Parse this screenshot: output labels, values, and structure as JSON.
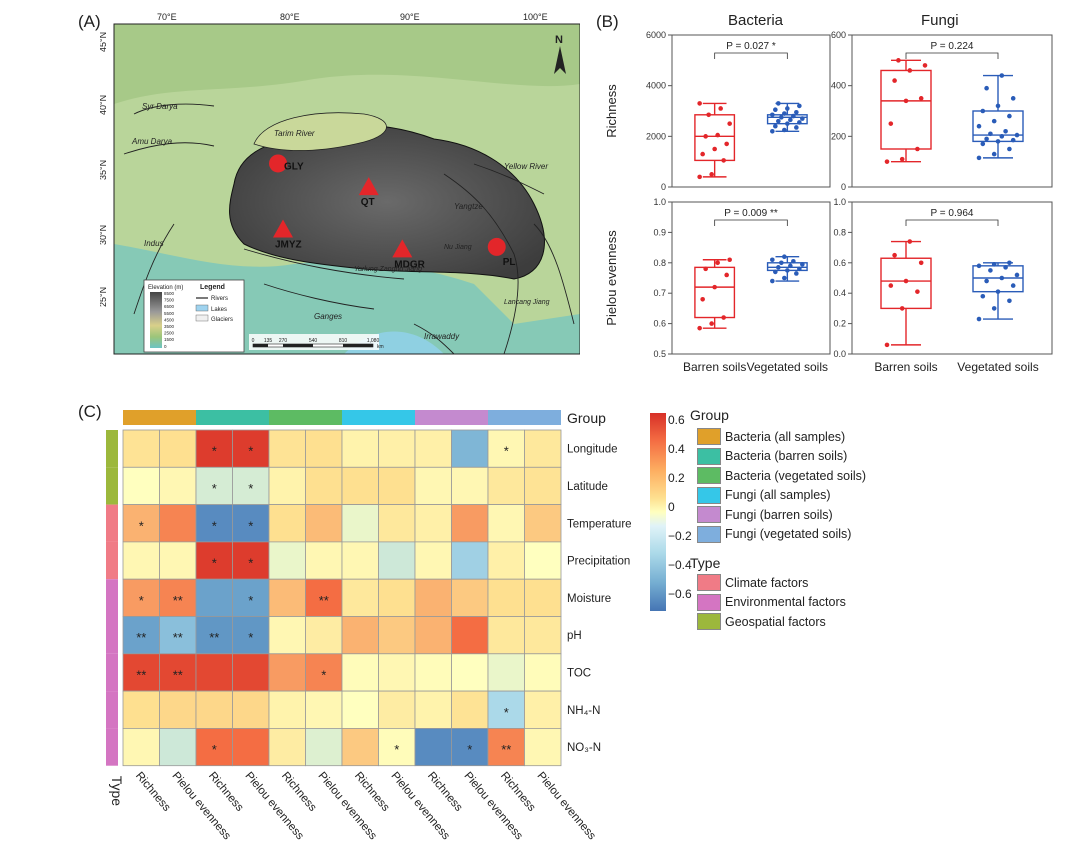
{
  "panel_labels": {
    "a": "(A)",
    "b": "(B)",
    "c": "(C)"
  },
  "map": {
    "lon_labels": [
      "70°E",
      "80°E",
      "90°E",
      "100°E"
    ],
    "lat_labels": [
      "45°N",
      "40°N",
      "35°N",
      "30°N",
      "25°N"
    ],
    "north": "N",
    "sites": [
      {
        "label": "GLY",
        "marker": "circle",
        "lon": 79.8,
        "lat": 35.3
      },
      {
        "label": "QT",
        "marker": "triangle",
        "lon": 87.1,
        "lat": 33.4
      },
      {
        "label": "JMYZ",
        "marker": "triangle",
        "lon": 80.2,
        "lat": 30.0
      },
      {
        "label": "MDGR",
        "marker": "triangle",
        "lon": 89.8,
        "lat": 28.4
      },
      {
        "label": "PL",
        "marker": "circle",
        "lon": 97.4,
        "lat": 28.6
      }
    ],
    "rivers": [
      "Syr Darya",
      "Amu Darya",
      "Tarim River",
      "Yellow River",
      "Yangtze",
      "Indus",
      "Yarlung Zangbo Jiang",
      "Nu Jiang",
      "Lancang Jiang",
      "Ganges",
      "Irrawaddy"
    ],
    "legend": {
      "title": "Legend",
      "elev_title": "Elevation (m)",
      "elev_ticks": [
        "8500",
        "7500",
        "6500",
        "5500",
        "4500",
        "3500",
        "2500",
        "1500",
        "0"
      ],
      "items": [
        "Rivers",
        "Lakes",
        "Glaciers"
      ]
    },
    "scale": {
      "ticks": [
        "0",
        "135",
        "270",
        "540",
        "810",
        "1,080"
      ],
      "unit": "km"
    }
  },
  "chart_data": [
    {
      "type": "box",
      "title": "Bacteria",
      "ylabel": "Richness",
      "ylim": [
        0,
        6000
      ],
      "yticks": [
        0,
        2000,
        4000,
        6000
      ],
      "categories": [
        "Barren soils",
        "Vegetated soils"
      ],
      "annotation": "P = 0.027 *",
      "boxes": [
        {
          "min": 400,
          "q1": 1050,
          "median": 2000,
          "q3": 2850,
          "max": 3300,
          "points": [
            400,
            500,
            1050,
            1300,
            1500,
            1700,
            2000,
            2050,
            2500,
            2850,
            3100,
            3300
          ]
        },
        {
          "min": 2200,
          "q1": 2500,
          "median": 2750,
          "q3": 2850,
          "max": 3300,
          "points": [
            2200,
            2250,
            2350,
            2400,
            2500,
            2550,
            2600,
            2650,
            2700,
            2750,
            2800,
            2850,
            2900,
            2950,
            3050,
            3100,
            3200,
            3300
          ]
        }
      ]
    },
    {
      "type": "box",
      "title": "Fungi",
      "ylabel": "",
      "ylim": [
        0,
        600
      ],
      "yticks": [
        0,
        200,
        400,
        600
      ],
      "categories": [
        "Barren soils",
        "Vegetated soils"
      ],
      "annotation": "P = 0.224",
      "boxes": [
        {
          "min": 100,
          "q1": 150,
          "median": 340,
          "q3": 460,
          "max": 500,
          "points": [
            100,
            110,
            150,
            250,
            340,
            350,
            420,
            460,
            480,
            500
          ]
        },
        {
          "min": 115,
          "q1": 180,
          "median": 205,
          "q3": 300,
          "max": 440,
          "points": [
            115,
            130,
            150,
            170,
            180,
            185,
            190,
            200,
            205,
            210,
            220,
            240,
            260,
            280,
            300,
            320,
            350,
            390,
            440
          ]
        }
      ]
    },
    {
      "type": "box",
      "title": "",
      "ylabel": "Pielou evenness",
      "ylim": [
        0.5,
        1.0
      ],
      "yticks": [
        0.5,
        0.6,
        0.7,
        0.8,
        0.9,
        1.0
      ],
      "categories": [
        "Barren soils",
        "Vegetated soils"
      ],
      "annotation": "P = 0.009 **",
      "boxes": [
        {
          "min": 0.585,
          "q1": 0.62,
          "median": 0.72,
          "q3": 0.785,
          "max": 0.81,
          "points": [
            0.585,
            0.6,
            0.62,
            0.68,
            0.72,
            0.76,
            0.78,
            0.8,
            0.81
          ]
        },
        {
          "min": 0.74,
          "q1": 0.775,
          "median": 0.785,
          "q3": 0.8,
          "max": 0.82,
          "points": [
            0.74,
            0.75,
            0.765,
            0.77,
            0.775,
            0.78,
            0.785,
            0.79,
            0.795,
            0.8,
            0.805,
            0.81,
            0.82
          ]
        }
      ]
    },
    {
      "type": "box",
      "title": "",
      "ylabel": "",
      "ylim": [
        0.0,
        1.0
      ],
      "yticks": [
        0.0,
        0.2,
        0.4,
        0.6,
        0.8,
        1.0
      ],
      "categories": [
        "Barren soils",
        "Vegetated soils"
      ],
      "annotation": "P = 0.964",
      "boxes": [
        {
          "min": 0.06,
          "q1": 0.3,
          "median": 0.48,
          "q3": 0.63,
          "max": 0.74,
          "points": [
            0.06,
            0.3,
            0.41,
            0.45,
            0.48,
            0.6,
            0.65,
            0.74
          ]
        },
        {
          "min": 0.23,
          "q1": 0.41,
          "median": 0.5,
          "q3": 0.58,
          "max": 0.6,
          "points": [
            0.23,
            0.3,
            0.35,
            0.38,
            0.41,
            0.45,
            0.48,
            0.5,
            0.52,
            0.55,
            0.57,
            0.58,
            0.59,
            0.6
          ]
        }
      ]
    },
    {
      "type": "heatmap",
      "rows": [
        "Longitude",
        "Latitude",
        "Temperature",
        "Precipitation",
        "Moisture",
        "pH",
        "TOC",
        "NH₄-N",
        "NO₃-N"
      ],
      "columns": [
        "Richness",
        "Pielou evenness",
        "Richness",
        "Pielou evenness",
        "Richness",
        "Pielou evenness",
        "Richness",
        "Pielou evenness",
        "Richness",
        "Pielou evenness",
        "Richness",
        "Pielou evenness"
      ],
      "column_groups": [
        "Bacteria (all samples)",
        "Bacteria (all samples)",
        "Bacteria (barren soils)",
        "Bacteria (barren soils)",
        "Bacteria (vegetated soils)",
        "Bacteria (vegetated soils)",
        "Fungi (all samples)",
        "Fungi (all samples)",
        "Fungi (barren soils)",
        "Fungi (barren soils)",
        "Fungi (vegetated soils)",
        "Fungi (vegetated soils)"
      ],
      "row_types": [
        "Geospatial factors",
        "Geospatial factors",
        "Climate factors",
        "Climate factors",
        "Environmental factors",
        "Environmental factors",
        "Environmental factors",
        "Environmental factors",
        "Environmental factors"
      ],
      "values": [
        [
          0.18,
          0.2,
          0.65,
          0.65,
          0.18,
          0.2,
          0.08,
          0.1,
          0.1,
          -0.4,
          0.05,
          0.15
        ],
        [
          0.0,
          0.05,
          -0.1,
          -0.1,
          0.08,
          0.2,
          0.2,
          0.2,
          0.05,
          0.05,
          0.15,
          0.18
        ],
        [
          0.3,
          0.4,
          -0.6,
          -0.6,
          0.2,
          0.28,
          -0.05,
          0.15,
          0.1,
          0.35,
          0.05,
          0.25
        ],
        [
          0.05,
          0.05,
          0.65,
          0.65,
          -0.05,
          0.05,
          0.05,
          -0.12,
          0.05,
          -0.25,
          0.1,
          0.0
        ],
        [
          0.35,
          0.4,
          -0.5,
          -0.5,
          0.28,
          0.45,
          0.15,
          0.2,
          0.3,
          0.25,
          0.2,
          0.2
        ],
        [
          -0.5,
          -0.35,
          -0.55,
          -0.55,
          0.05,
          0.12,
          0.3,
          0.25,
          0.3,
          0.45,
          0.15,
          0.15
        ],
        [
          0.6,
          0.6,
          0.6,
          0.6,
          0.35,
          0.4,
          0.02,
          0.05,
          0.02,
          0.0,
          -0.05,
          0.02
        ],
        [
          0.2,
          0.22,
          0.22,
          0.22,
          0.08,
          0.05,
          0.0,
          0.12,
          0.08,
          0.18,
          -0.2,
          0.1
        ],
        [
          0.05,
          -0.12,
          0.45,
          0.45,
          0.12,
          -0.08,
          0.25,
          0.02,
          -0.6,
          -0.6,
          0.4,
          0.05
        ]
      ],
      "stars": [
        [
          "",
          "",
          "*",
          "*",
          "",
          "",
          "",
          "",
          "",
          "",
          "*",
          ""
        ],
        [
          "",
          "",
          "*",
          "*",
          "",
          "",
          "",
          "",
          "",
          "",
          "",
          ""
        ],
        [
          "*",
          "",
          "*",
          "*",
          "",
          "",
          "",
          "",
          "",
          "",
          "",
          ""
        ],
        [
          "",
          "",
          "*",
          "*",
          "",
          "",
          "",
          "",
          "",
          "",
          "",
          ""
        ],
        [
          "*",
          "**",
          "",
          "*",
          "",
          "**",
          "",
          "",
          "",
          "",
          "",
          ""
        ],
        [
          "**",
          "**",
          "**",
          "*",
          "",
          "",
          "",
          "",
          "",
          "",
          "",
          ""
        ],
        [
          "**",
          "**",
          "",
          "",
          "",
          "*",
          "",
          "",
          "",
          "",
          "",
          ""
        ],
        [
          "",
          "",
          "",
          "",
          "",
          "",
          "",
          "",
          "",
          "",
          "*",
          ""
        ],
        [
          "",
          "",
          "*",
          "",
          "",
          "",
          "",
          "*",
          "",
          "*",
          "**",
          ""
        ]
      ],
      "colorbar": {
        "ticks": [
          "0.6",
          "0.4",
          "0.2",
          "0",
          "−0.2",
          "−0.4",
          "−0.6"
        ],
        "range": [
          -0.7,
          0.7
        ]
      },
      "group_label": "Group",
      "type_label": "Type",
      "group_legend_title": "Group",
      "type_legend_title": "Type",
      "group_legend": [
        {
          "label": "Bacteria (all samples)",
          "color": "#E0A02A"
        },
        {
          "label": "Bacteria (barren soils)",
          "color": "#3CBFA3"
        },
        {
          "label": "Bacteria (vegetated soils)",
          "color": "#5DBB63"
        },
        {
          "label": "Fungi (all samples)",
          "color": "#35C7E8"
        },
        {
          "label": "Fungi (barren soils)",
          "color": "#C48ACF"
        },
        {
          "label": "Fungi (vegetated soils)",
          "color": "#7EAEDD"
        }
      ],
      "type_legend": [
        {
          "label": "Climate factors",
          "color": "#F07B86"
        },
        {
          "label": "Environmental factors",
          "color": "#D475C2"
        },
        {
          "label": "Geospatial factors",
          "color": "#9CB83C"
        }
      ]
    }
  ],
  "colors": {
    "barren": "#E3262A",
    "vegetated": "#2A5CB8"
  }
}
